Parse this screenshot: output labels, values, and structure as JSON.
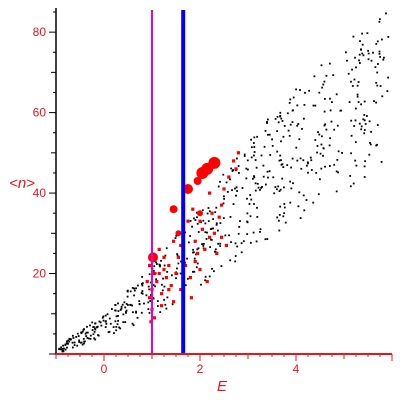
{
  "chart_data": {
    "type": "scatter",
    "xlabel": "E",
    "ylabel": "<n>",
    "xlim": [
      -1,
      6
    ],
    "ylim": [
      0,
      86
    ],
    "xticks": [
      0,
      2,
      4
    ],
    "yticks": [
      20,
      40,
      60,
      80
    ],
    "colors": {
      "axis_x": "#e8151b",
      "axis_y": "#000000",
      "tick_labels": "#e8151b",
      "black_points": "#000000",
      "red_points": "#ff0000",
      "magenta_line": "#e000e0",
      "blue_line": "#0000ff"
    },
    "vertical_lines": [
      {
        "x": 1.0,
        "color": "#e000e0"
      },
      {
        "x": 1.65,
        "color": "#0000ff"
      }
    ],
    "black_band": {
      "description_note": "",
      "x_range": [
        -0.95,
        5.95
      ],
      "lower_edge": [
        [
          -0.95,
          0
        ],
        [
          0,
          4
        ],
        [
          1,
          9
        ],
        [
          2,
          16
        ],
        [
          3,
          25
        ],
        [
          4,
          33
        ],
        [
          5,
          40
        ],
        [
          5.9,
          46
        ]
      ],
      "upper_edge": [
        [
          -0.95,
          2
        ],
        [
          0,
          10
        ],
        [
          1,
          22
        ],
        [
          2,
          37
        ],
        [
          3,
          53
        ],
        [
          4,
          66
        ],
        [
          5,
          77
        ],
        [
          5.9,
          86
        ]
      ],
      "count": 620
    },
    "red_points": [
      [
        0.95,
        14
      ],
      [
        1.0,
        16
      ],
      [
        1.05,
        20
      ],
      [
        1.1,
        18
      ],
      [
        1.2,
        15
      ],
      [
        1.3,
        19
      ],
      [
        1.35,
        22
      ],
      [
        0.9,
        18
      ],
      [
        0.95,
        22
      ],
      [
        1.05,
        24
      ],
      [
        1.15,
        26
      ],
      [
        1.25,
        21
      ],
      [
        1.4,
        17
      ],
      [
        1.45,
        13
      ],
      [
        1.0,
        11
      ],
      [
        1.05,
        9
      ],
      [
        0.98,
        8
      ],
      [
        1.2,
        12
      ],
      [
        1.5,
        20
      ],
      [
        1.55,
        24
      ],
      [
        1.6,
        27
      ],
      [
        1.7,
        22
      ],
      [
        1.8,
        19
      ],
      [
        1.9,
        23
      ],
      [
        2.0,
        21
      ],
      [
        2.1,
        26
      ],
      [
        2.2,
        29
      ],
      [
        2.3,
        30
      ],
      [
        1.75,
        33
      ],
      [
        1.85,
        36
      ],
      [
        1.9,
        28
      ],
      [
        2.05,
        31
      ],
      [
        2.25,
        35
      ],
      [
        2.4,
        34
      ],
      [
        2.45,
        37
      ],
      [
        2.5,
        41
      ],
      [
        2.6,
        44
      ],
      [
        2.7,
        48
      ],
      [
        2.8,
        50
      ],
      [
        2.75,
        46
      ],
      [
        2.2,
        40
      ],
      [
        2.0,
        33
      ],
      [
        1.95,
        25
      ],
      [
        1.6,
        16
      ],
      [
        1.35,
        16
      ],
      [
        1.45,
        28
      ],
      [
        1.25,
        24
      ],
      [
        1.15,
        20
      ],
      [
        2.35,
        25
      ],
      [
        2.45,
        29
      ],
      [
        2.55,
        27
      ],
      [
        2.15,
        18
      ],
      [
        1.82,
        14
      ],
      [
        1.65,
        20
      ]
    ],
    "red_points_large": [
      [
        1.02,
        24,
        5
      ],
      [
        1.45,
        36,
        4
      ],
      [
        1.75,
        41,
        5
      ],
      [
        1.95,
        43,
        4
      ],
      [
        2.05,
        45,
        6
      ],
      [
        2.15,
        46,
        6
      ],
      [
        2.3,
        47.5,
        6
      ],
      [
        2.0,
        35,
        3
      ],
      [
        1.55,
        30,
        3
      ]
    ]
  }
}
